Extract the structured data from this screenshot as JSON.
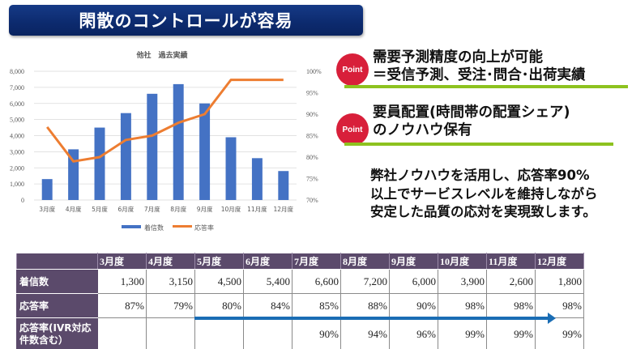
{
  "title": "閑散のコントロールが容易",
  "points": [
    {
      "badge": "Point",
      "line1": "需要予測精度の向上が可能",
      "line2": "＝受信予測、受注･問合･出荷実績"
    },
    {
      "badge": "Point",
      "line1": "要員配置(時間帯の配置シェア)",
      "line2": "のノウハウ保有"
    }
  ],
  "summary": {
    "line1": "弊社ノウハウを活用し、応答率90%",
    "line2": "以上でサービスレベルを維持しながら",
    "line3": "安定した品質の応対を実現致します。"
  },
  "colors": {
    "banner": "#0c2a6e",
    "bar": "#4472c4",
    "line": "#ed7d31",
    "badge": "#d81f3a",
    "underline": "#8dc21f",
    "table_header": "#5b4a6b",
    "arrow": "#1a6db4"
  },
  "chart_data": {
    "type": "bar+line",
    "title": "他社　過去実績",
    "categories": [
      "3月度",
      "4月度",
      "5月度",
      "6月度",
      "7月度",
      "8月度",
      "9月度",
      "10月度",
      "11月度",
      "12月度"
    ],
    "series": [
      {
        "name": "着信数",
        "type": "bar",
        "axis": "left",
        "values": [
          1300,
          3150,
          4500,
          5400,
          6600,
          7200,
          6000,
          3900,
          2600,
          1800
        ]
      },
      {
        "name": "応答率",
        "type": "line",
        "axis": "right",
        "values": [
          87,
          79,
          80,
          84,
          85,
          88,
          90,
          98,
          98,
          98
        ]
      }
    ],
    "y_left": {
      "min": 0,
      "max": 8000,
      "step": 1000,
      "ticks": [
        "0",
        "1,000",
        "2,000",
        "3,000",
        "4,000",
        "5,000",
        "6,000",
        "7,000",
        "8,000"
      ]
    },
    "y_right": {
      "min": 70,
      "max": 100,
      "step": 5,
      "ticks": [
        "70%",
        "75%",
        "80%",
        "85%",
        "90%",
        "95%",
        "100%"
      ]
    },
    "grid": true,
    "legend": "bottom"
  },
  "table": {
    "corner": "",
    "months": [
      "3月度",
      "4月度",
      "5月度",
      "6月度",
      "7月度",
      "8月度",
      "9月度",
      "10月度",
      "11月度",
      "12月度"
    ],
    "rows": [
      {
        "label": "着信数",
        "values": [
          "1,300",
          "3,150",
          "4,500",
          "5,400",
          "6,600",
          "7,200",
          "6,000",
          "3,900",
          "2,600",
          "1,800"
        ]
      },
      {
        "label": "応答率",
        "values": [
          "87%",
          "79%",
          "80%",
          "84%",
          "85%",
          "88%",
          "90%",
          "98%",
          "98%",
          "98%"
        ]
      },
      {
        "label_line1": "応答率(IVR対応",
        "label_line2": "件数含む）",
        "values": [
          "",
          "",
          "",
          "",
          "90%",
          "94%",
          "96%",
          "99%",
          "99%",
          "99%"
        ]
      }
    ]
  }
}
